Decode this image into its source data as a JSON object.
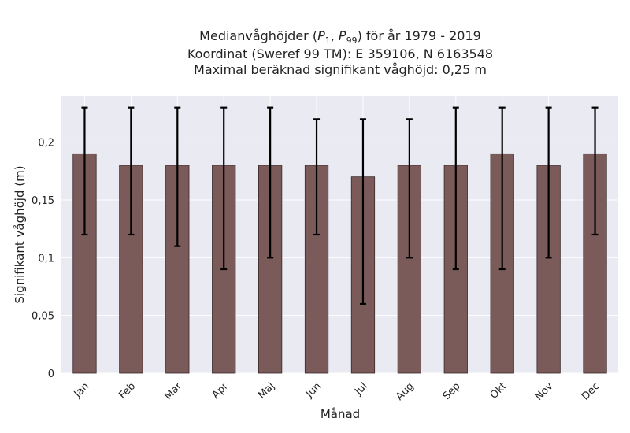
{
  "chart_data": {
    "type": "bar",
    "title_lines": [
      "Medianvåghöjder (P1, P99) för år 1979 - 2019",
      "Koordinat (Sweref 99 TM): E 359106, N 6163548",
      "Maximal beräknad signifikant våghöjd: 0,25 m"
    ],
    "title_math": {
      "prefix": "Medianvåghöjder (",
      "p_low": "1",
      "p_high": "99",
      "suffix": ") för år 1979 - 2019"
    },
    "xlabel": "Månad",
    "ylabel": "Signifikant våghöjd (m)",
    "categories": [
      "Jan",
      "Feb",
      "Mar",
      "Apr",
      "Maj",
      "Jun",
      "Jul",
      "Aug",
      "Sep",
      "Okt",
      "Nov",
      "Dec"
    ],
    "values": [
      0.19,
      0.18,
      0.18,
      0.18,
      0.18,
      0.18,
      0.17,
      0.18,
      0.18,
      0.19,
      0.18,
      0.19
    ],
    "p1": [
      0.12,
      0.12,
      0.11,
      0.09,
      0.1,
      0.12,
      0.06,
      0.1,
      0.09,
      0.09,
      0.1,
      0.12
    ],
    "p99": [
      0.23,
      0.23,
      0.23,
      0.23,
      0.23,
      0.22,
      0.22,
      0.22,
      0.23,
      0.23,
      0.23,
      0.23
    ],
    "yticks": [
      0,
      0.05,
      0.1,
      0.15,
      0.2
    ],
    "ytick_labels": [
      "0",
      "0,05",
      "0,1",
      "0,15",
      "0,2"
    ],
    "ylim": [
      0,
      0.24
    ],
    "grid": true,
    "colors": {
      "bar": "#7b5a5a",
      "bar_edge": "#3a2a2a",
      "errorbar": "#000000",
      "plot_bg": "#eaeaf2",
      "grid": "#ffffff"
    }
  }
}
